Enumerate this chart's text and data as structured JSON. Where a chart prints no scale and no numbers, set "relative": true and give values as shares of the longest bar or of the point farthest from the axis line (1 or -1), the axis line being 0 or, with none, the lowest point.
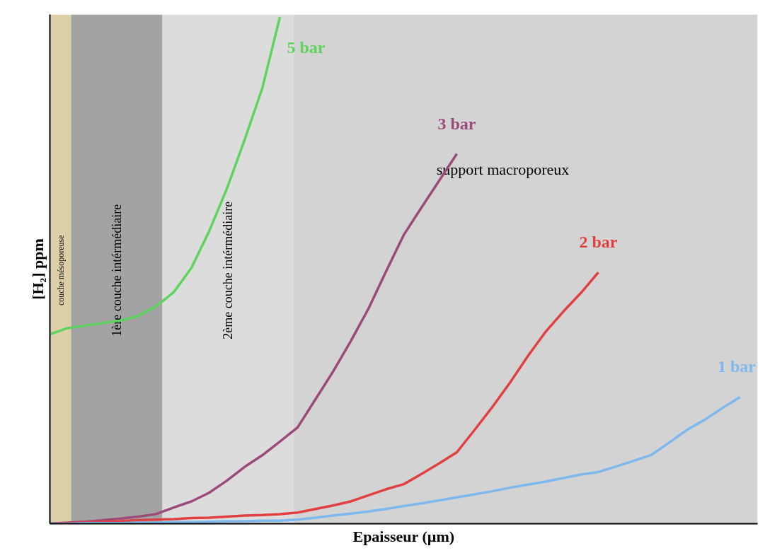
{
  "chart_data": {
    "type": "line",
    "relative": true,
    "xlabel": "Epaisseur (µm)",
    "ylabel": "[H₂] ppm",
    "categories": [
      null,
      null,
      null,
      null,
      null,
      null,
      null,
      null,
      null,
      null,
      null,
      null,
      null,
      null,
      null,
      null,
      null,
      null,
      null,
      null,
      null,
      null,
      null,
      null,
      null,
      null,
      null,
      null,
      null,
      null,
      null,
      null,
      null,
      null,
      null,
      null,
      null,
      null,
      null,
      null,
      null
    ],
    "annotations": [
      "couche mésoporeuse",
      "1ère couche intérmédiaire",
      "2ème couche intérmédiaire",
      "support macroporeux"
    ],
    "series": [
      {
        "name": "5 bar",
        "color": "#5fd35f",
        "values": [
          0.374,
          0.386,
          0.391,
          0.396,
          0.401,
          0.41,
          0.429,
          0.457,
          0.505,
          0.577,
          0.661,
          0.757,
          0.859,
          1.0,
          null,
          null,
          null,
          null,
          null,
          null,
          null,
          null,
          null,
          null,
          null,
          null,
          null,
          null,
          null,
          null,
          null,
          null,
          null,
          null,
          null,
          null,
          null,
          null,
          null,
          null,
          null
        ]
      },
      {
        "name": "3 bar",
        "color": "#9b4a7a",
        "values": [
          0,
          0.002,
          0.004,
          0.007,
          0.01,
          0.014,
          0.019,
          0.032,
          0.044,
          0.061,
          0.085,
          0.112,
          0.135,
          0.162,
          0.19,
          0.245,
          0.3,
          0.36,
          0.424,
          0.498,
          0.57,
          0.624,
          0.677,
          0.73,
          null,
          null,
          null,
          null,
          null,
          null,
          null,
          null,
          null,
          null,
          null,
          null,
          null,
          null,
          null,
          null,
          null
        ]
      },
      {
        "name": "2 bar",
        "color": "#e04040",
        "values": [
          0,
          0.001,
          0.003,
          0.004,
          0.005,
          0.007,
          0.008,
          0.009,
          0.011,
          0.012,
          0.014,
          0.016,
          0.017,
          0.019,
          0.022,
          0.029,
          0.036,
          0.044,
          0.056,
          0.068,
          0.078,
          0.098,
          0.119,
          0.141,
          0.185,
          0.23,
          0.278,
          0.33,
          0.378,
          0.418,
          0.455,
          0.496,
          null,
          null,
          null,
          null,
          null,
          null,
          null,
          null,
          null
        ]
      },
      {
        "name": "1 bar",
        "color": "#7db8ef",
        "values": [
          0,
          0,
          0.001,
          0.001,
          0.001,
          0.002,
          0.002,
          0.003,
          0.003,
          0.004,
          0.005,
          0.005,
          0.006,
          0.006,
          0.008,
          0.012,
          0.016,
          0.02,
          0.024,
          0.029,
          0.035,
          0.04,
          0.046,
          0.052,
          0.058,
          0.064,
          0.071,
          0.077,
          0.083,
          0.09,
          0.097,
          0.102,
          0.113,
          0.124,
          0.136,
          0.16,
          0.185,
          0.205,
          0.228,
          0.25,
          null
        ]
      }
    ]
  }
}
